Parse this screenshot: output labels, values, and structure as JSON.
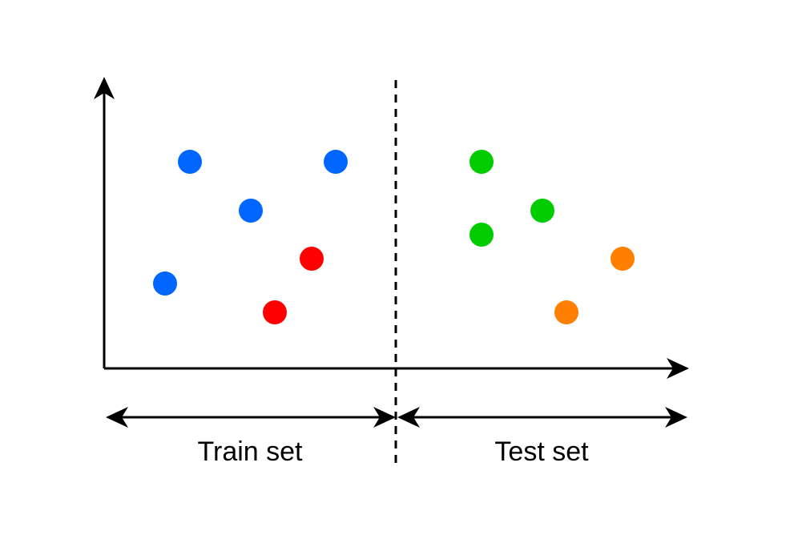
{
  "labels": {
    "train": "Train set",
    "test": "Test set"
  }
}
